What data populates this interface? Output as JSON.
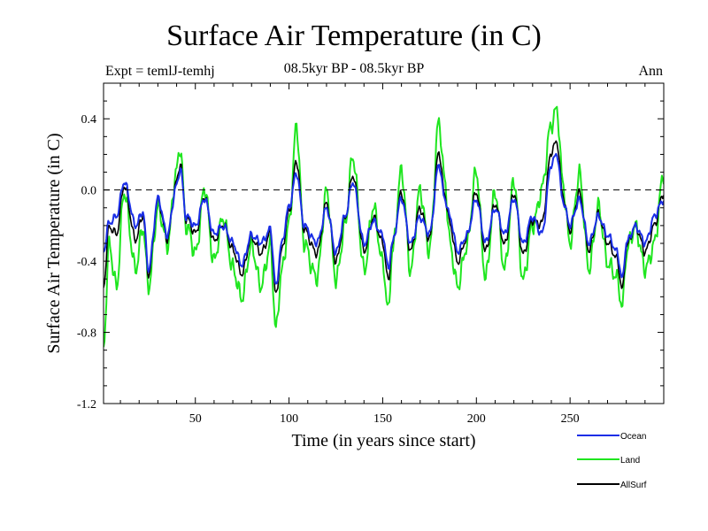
{
  "header": {
    "title": "Surface Air Temperature (in C)",
    "subtitle": "08.5kyr BP - 08.5kyr BP",
    "expt": "Expt = temlJ-temhj",
    "period": "Ann"
  },
  "chart_data": {
    "type": "line",
    "title": "Surface Air Temperature (in C)",
    "xlabel": "Time (in years since start)",
    "ylabel": "Surface Air Temperature (in C)",
    "xlim": [
      1,
      300
    ],
    "ylim": [
      -1.2,
      0.6
    ],
    "xticks": [
      50,
      100,
      150,
      200,
      250
    ],
    "yticks": [
      -1.2,
      -0.8,
      -0.4,
      0.0,
      0.4
    ],
    "ytick_labels": [
      "-1.2",
      "-0.8",
      "-0.4",
      "0.0",
      "0.4"
    ],
    "reference_line": 0.0,
    "legend": [
      "Ocean",
      "Land",
      "AllSurf"
    ],
    "colors": {
      "Ocean": "#1a2ee6",
      "Land": "#1fe61f",
      "AllSurf": "#000000"
    },
    "anchors": {
      "x": [
        1,
        4,
        8,
        12,
        18,
        22,
        25,
        30,
        35,
        40,
        42,
        45,
        50,
        55,
        60,
        65,
        70,
        75,
        80,
        85,
        90,
        93,
        96,
        100,
        104,
        108,
        115,
        120,
        125,
        130,
        134,
        140,
        145,
        150,
        153,
        155,
        160,
        165,
        170,
        175,
        180,
        183,
        186,
        190,
        195,
        200,
        205,
        210,
        215,
        220,
        225,
        230,
        235,
        240,
        243,
        246,
        250,
        255,
        260,
        265,
        270,
        275,
        278,
        280,
        285,
        290,
        295,
        300
      ],
      "ocean": [
        -0.35,
        -0.18,
        -0.15,
        0.05,
        -0.2,
        -0.12,
        -0.45,
        -0.05,
        -0.25,
        0.02,
        0.13,
        -0.15,
        -0.2,
        -0.05,
        -0.25,
        -0.2,
        -0.3,
        -0.42,
        -0.25,
        -0.3,
        -0.22,
        -0.55,
        -0.3,
        -0.1,
        0.1,
        -0.2,
        -0.3,
        -0.1,
        -0.35,
        -0.15,
        0.05,
        -0.3,
        -0.18,
        -0.25,
        -0.45,
        -0.3,
        -0.05,
        -0.3,
        -0.15,
        -0.25,
        0.15,
        -0.05,
        -0.15,
        -0.35,
        -0.25,
        -0.05,
        -0.3,
        -0.1,
        -0.25,
        -0.05,
        -0.3,
        -0.15,
        -0.25,
        0.15,
        0.2,
        -0.05,
        -0.2,
        -0.05,
        -0.3,
        -0.15,
        -0.25,
        -0.35,
        -0.5,
        -0.3,
        -0.2,
        -0.3,
        -0.15,
        -0.05
      ],
      "land": [
        -0.9,
        -0.3,
        -0.55,
        0.0,
        -0.45,
        -0.2,
        -0.55,
        -0.1,
        -0.3,
        0.1,
        0.25,
        -0.2,
        -0.35,
        0.0,
        -0.4,
        -0.15,
        -0.45,
        -0.6,
        -0.3,
        -0.55,
        -0.3,
        -0.8,
        -0.45,
        -0.2,
        0.37,
        -0.3,
        -0.5,
        0.0,
        -0.5,
        -0.2,
        0.2,
        -0.45,
        -0.1,
        -0.4,
        -0.7,
        -0.35,
        0.1,
        -0.45,
        0.0,
        -0.35,
        0.4,
        0.05,
        -0.3,
        -0.55,
        -0.3,
        0.1,
        -0.5,
        0.0,
        -0.45,
        0.05,
        -0.5,
        -0.2,
        0.0,
        0.38,
        0.45,
        0.05,
        -0.3,
        0.1,
        -0.45,
        -0.1,
        -0.4,
        -0.5,
        -0.65,
        -0.35,
        -0.2,
        -0.45,
        -0.3,
        0.1
      ],
      "allsurf": [
        -0.55,
        -0.2,
        -0.25,
        0.03,
        -0.28,
        -0.14,
        -0.48,
        -0.06,
        -0.27,
        0.04,
        0.16,
        -0.16,
        -0.24,
        -0.04,
        -0.29,
        -0.19,
        -0.34,
        -0.47,
        -0.26,
        -0.36,
        -0.24,
        -0.6,
        -0.34,
        -0.13,
        0.17,
        -0.22,
        -0.36,
        -0.07,
        -0.4,
        -0.16,
        0.09,
        -0.34,
        -0.16,
        -0.29,
        -0.52,
        -0.31,
        -0.02,
        -0.34,
        -0.1,
        -0.28,
        0.22,
        -0.03,
        -0.19,
        -0.41,
        -0.26,
        -0.01,
        -0.35,
        -0.07,
        -0.31,
        -0.02,
        -0.36,
        -0.17,
        -0.19,
        0.22,
        0.27,
        -0.02,
        -0.23,
        -0.01,
        -0.34,
        -0.14,
        -0.29,
        -0.39,
        -0.56,
        -0.32,
        -0.2,
        -0.35,
        -0.2,
        -0.01
      ]
    }
  }
}
